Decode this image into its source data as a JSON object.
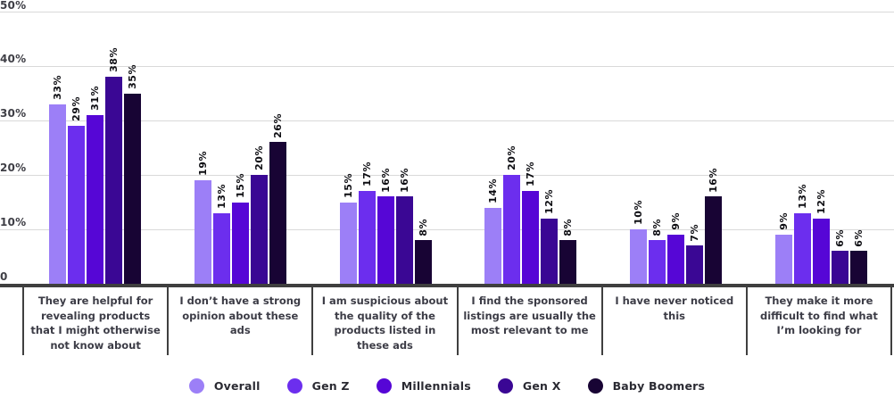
{
  "chart_data": {
    "type": "bar",
    "title": "",
    "grid": true,
    "legend_position": "bottom",
    "value_suffix": "%",
    "ylim": [
      0,
      50
    ],
    "y_ticks": [
      "50%",
      "40%",
      "30%",
      "20%",
      "10%",
      "0"
    ],
    "y_tick_values": [
      50,
      40,
      30,
      20,
      10,
      0
    ],
    "categories": [
      "They are helpful for revealing products that I might otherwise not know about",
      "I don’t have a strong opinion about these ads",
      "I am suspicious about the quality of the products listed in these ads",
      "I find the sponsored listings are usually the most relevant to me",
      "I have never noticed this",
      "They make it more difficult to find what I’m looking for"
    ],
    "series": [
      {
        "name": "Overall",
        "color": "#9c7ff7",
        "values": [
          33,
          19,
          15,
          14,
          10,
          9
        ]
      },
      {
        "name": "Gen Z",
        "color": "#6c2eee",
        "values": [
          29,
          13,
          17,
          20,
          8,
          13
        ]
      },
      {
        "name": "Millennials",
        "color": "#5606d6",
        "values": [
          31,
          15,
          16,
          17,
          9,
          12
        ]
      },
      {
        "name": "Gen X",
        "color": "#3a0794",
        "values": [
          38,
          20,
          16,
          12,
          7,
          6
        ]
      },
      {
        "name": "Baby Boomers",
        "color": "#180434",
        "values": [
          35,
          26,
          8,
          8,
          16,
          6
        ]
      }
    ]
  }
}
